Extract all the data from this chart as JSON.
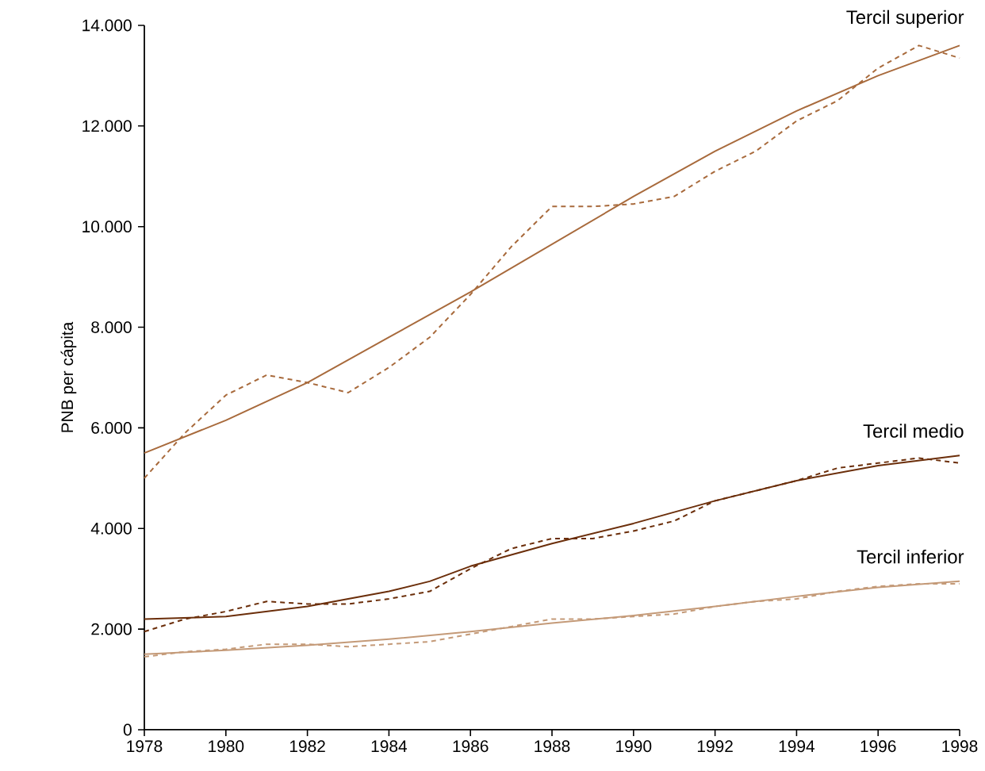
{
  "chart_data": {
    "type": "line",
    "ylabel": "PNB per cápita",
    "xlim": [
      1978,
      1998
    ],
    "xticks": [
      1978,
      1980,
      1982,
      1984,
      1986,
      1988,
      1990,
      1992,
      1994,
      1996,
      1998
    ],
    "ylim": [
      0,
      14000
    ],
    "yticks": [
      {
        "value": 0,
        "label": "0"
      },
      {
        "value": 2000,
        "label": "2.000"
      },
      {
        "value": 4000,
        "label": "4.000"
      },
      {
        "value": 6000,
        "label": "6.000"
      },
      {
        "value": 8000,
        "label": "8.000"
      },
      {
        "value": 10000,
        "label": "10.000"
      },
      {
        "value": 12000,
        "label": "12.000"
      },
      {
        "value": 14000,
        "label": "14.000"
      }
    ],
    "grid": false,
    "legend": false,
    "marker": "none",
    "series": [
      {
        "name": "Tercil superior",
        "color": "#a86a3c",
        "line_style": "solid",
        "x": [
          1978,
          1980,
          1982,
          1984,
          1986,
          1988,
          1990,
          1992,
          1994,
          1996,
          1998
        ],
        "values": [
          5500,
          6150,
          6900,
          7800,
          8700,
          9650,
          10600,
          11500,
          12300,
          13000,
          13600
        ]
      },
      {
        "color": "#a86a3c",
        "line_style": "dashed",
        "x": [
          1978,
          1979,
          1980,
          1981,
          1982,
          1983,
          1984,
          1985,
          1986,
          1987,
          1988,
          1989,
          1990,
          1991,
          1992,
          1993,
          1994,
          1995,
          1996,
          1997,
          1998
        ],
        "values": [
          5000,
          5900,
          6650,
          7050,
          6900,
          6700,
          7200,
          7800,
          8650,
          9600,
          10400,
          10400,
          10450,
          10600,
          11100,
          11500,
          12100,
          12500,
          13150,
          13600,
          13350
        ]
      },
      {
        "name": "Tercil medio",
        "color": "#6b2e0a",
        "line_style": "solid",
        "x": [
          1978,
          1980,
          1982,
          1984,
          1985,
          1986,
          1988,
          1990,
          1992,
          1994,
          1996,
          1998
        ],
        "values": [
          2200,
          2250,
          2450,
          2750,
          2950,
          3250,
          3700,
          4100,
          4550,
          4950,
          5250,
          5450
        ]
      },
      {
        "color": "#6b2e0a",
        "line_style": "dashed",
        "x": [
          1978,
          1979,
          1980,
          1981,
          1982,
          1983,
          1984,
          1985,
          1986,
          1987,
          1988,
          1989,
          1990,
          1991,
          1992,
          1993,
          1994,
          1995,
          1996,
          1997,
          1998
        ],
        "values": [
          1950,
          2200,
          2350,
          2550,
          2500,
          2500,
          2600,
          2750,
          3200,
          3600,
          3800,
          3800,
          3950,
          4150,
          4550,
          4750,
          4950,
          5200,
          5300,
          5400,
          5300
        ]
      },
      {
        "name": "Tercil inferior",
        "color": "#c49a78",
        "line_style": "solid",
        "x": [
          1978,
          1980,
          1982,
          1984,
          1986,
          1988,
          1990,
          1992,
          1994,
          1996,
          1998
        ],
        "values": [
          1500,
          1580,
          1680,
          1800,
          1950,
          2120,
          2270,
          2450,
          2650,
          2830,
          2950
        ]
      },
      {
        "color": "#c49a78",
        "line_style": "dashed",
        "x": [
          1978,
          1979,
          1980,
          1981,
          1982,
          1983,
          1984,
          1985,
          1986,
          1987,
          1988,
          1989,
          1990,
          1991,
          1992,
          1993,
          1994,
          1995,
          1996,
          1997,
          1998
        ],
        "values": [
          1450,
          1550,
          1600,
          1700,
          1700,
          1650,
          1700,
          1750,
          1900,
          2050,
          2200,
          2200,
          2250,
          2300,
          2450,
          2550,
          2600,
          2750,
          2850,
          2900,
          2900
        ]
      }
    ]
  }
}
